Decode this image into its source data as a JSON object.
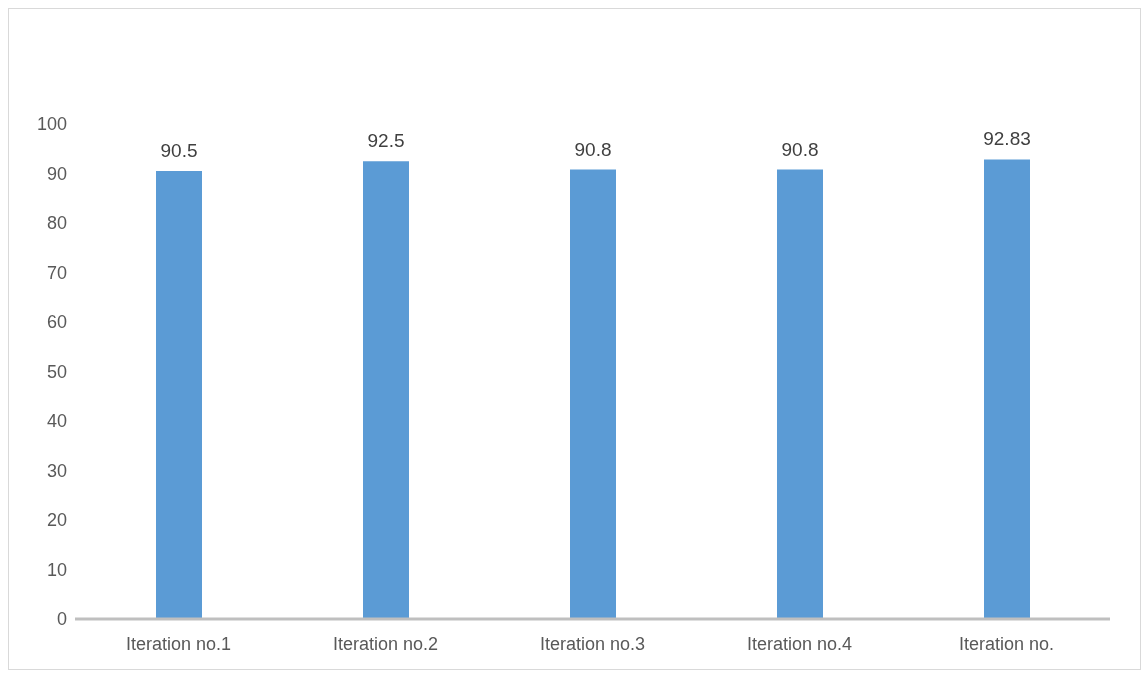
{
  "chart_data": {
    "type": "bar",
    "categories": [
      "Iteration no.1",
      "Iteration no.2",
      "Iteration no.3",
      "Iteration no.4",
      "Iteration no."
    ],
    "values": [
      90.5,
      92.5,
      90.8,
      90.8,
      92.83
    ],
    "color": "#5b9bd5",
    "ylim": [
      0,
      100
    ],
    "yticks": [
      0,
      10,
      20,
      30,
      40,
      50,
      60,
      70,
      80,
      90,
      100
    ],
    "grid": false,
    "data_labels": true
  }
}
